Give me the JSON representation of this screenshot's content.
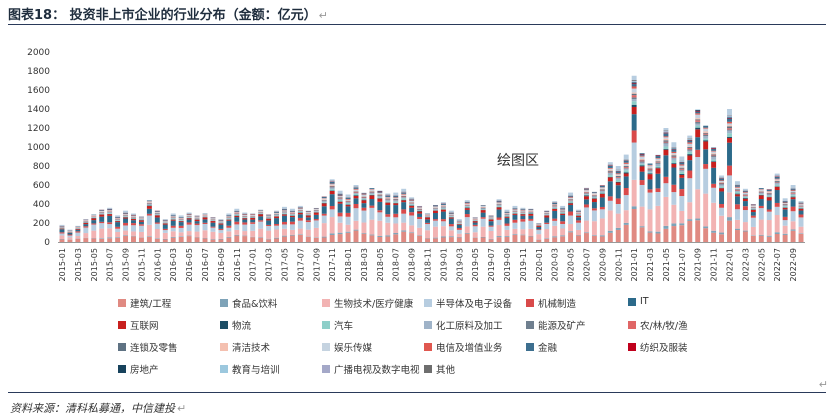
{
  "title": "图表18：  投资非上市企业的行业分布（金额：亿元）",
  "source": "资料来源：清科私募通，中信建投",
  "return_mark": "↵",
  "plot_area_label": "绘图区",
  "chart_data": {
    "type": "bar",
    "stacked": true,
    "title": "投资非上市企业的行业分布（金额：亿元）",
    "xlabel": "",
    "ylabel": "",
    "ylim": [
      0,
      2000
    ],
    "yticks": [
      0,
      200,
      400,
      600,
      800,
      1000,
      1200,
      1400,
      1600,
      1800,
      2000
    ],
    "grid": false,
    "legend_position": "bottom",
    "xtick_labels": [
      "2015-01",
      "2015-03",
      "2015-05",
      "2015-07",
      "2015-09",
      "2015-11",
      "2016-01",
      "2016-03",
      "2016-05",
      "2016-07",
      "2016-09",
      "2016-11",
      "2017-01",
      "2017-03",
      "2017-05",
      "2017-07",
      "2017-09",
      "2017-11",
      "2018-01",
      "2018-03",
      "2018-05",
      "2018-07",
      "2018-09",
      "2018-11",
      "2019-01",
      "2019-03",
      "2019-05",
      "2019-07",
      "2019-09",
      "2019-11",
      "2020-01",
      "2020-03",
      "2020-05",
      "2020-07",
      "2020-09",
      "2020-11",
      "2021-01",
      "2021-03",
      "2021-05",
      "2021-07",
      "2021-09",
      "2021-11",
      "2022-01",
      "2022-03",
      "2022-05",
      "2022-07",
      "2022-09"
    ],
    "categories": [
      "2015-01",
      "2015-02",
      "2015-03",
      "2015-04",
      "2015-05",
      "2015-06",
      "2015-07",
      "2015-08",
      "2015-09",
      "2015-10",
      "2015-11",
      "2015-12",
      "2016-01",
      "2016-02",
      "2016-03",
      "2016-04",
      "2016-05",
      "2016-06",
      "2016-07",
      "2016-08",
      "2016-09",
      "2016-10",
      "2016-11",
      "2016-12",
      "2017-01",
      "2017-02",
      "2017-03",
      "2017-04",
      "2017-05",
      "2017-06",
      "2017-07",
      "2017-08",
      "2017-09",
      "2017-10",
      "2017-11",
      "2017-12",
      "2018-01",
      "2018-02",
      "2018-03",
      "2018-04",
      "2018-05",
      "2018-06",
      "2018-07",
      "2018-08",
      "2018-09",
      "2018-10",
      "2018-11",
      "2018-12",
      "2019-01",
      "2019-02",
      "2019-03",
      "2019-04",
      "2019-05",
      "2019-06",
      "2019-07",
      "2019-08",
      "2019-09",
      "2019-10",
      "2019-11",
      "2019-12",
      "2020-01",
      "2020-02",
      "2020-03",
      "2020-04",
      "2020-05",
      "2020-06",
      "2020-07",
      "2020-08",
      "2020-09",
      "2020-10",
      "2020-11",
      "2020-12",
      "2021-01",
      "2021-02",
      "2021-03",
      "2021-04",
      "2021-05",
      "2021-06",
      "2021-07",
      "2021-08",
      "2021-09",
      "2021-10",
      "2021-11",
      "2021-12",
      "2022-01",
      "2022-02",
      "2022-03",
      "2022-04",
      "2022-05",
      "2022-06",
      "2022-07",
      "2022-08",
      "2022-09",
      "2022-10"
    ],
    "totals": [
      180,
      130,
      170,
      240,
      290,
      340,
      360,
      280,
      330,
      300,
      270,
      440,
      330,
      240,
      300,
      280,
      310,
      280,
      300,
      260,
      240,
      300,
      350,
      310,
      300,
      340,
      290,
      330,
      370,
      350,
      380,
      330,
      360,
      480,
      660,
      540,
      500,
      600,
      520,
      570,
      540,
      510,
      520,
      560,
      470,
      380,
      300,
      390,
      420,
      330,
      240,
      440,
      260,
      390,
      280,
      450,
      340,
      380,
      360,
      350,
      200,
      330,
      430,
      380,
      520,
      340,
      570,
      530,
      600,
      840,
      800,
      920,
      1750,
      940,
      830,
      920,
      1200,
      1050,
      900,
      1120,
      1400,
      1230,
      1000,
      700,
      1400,
      640,
      560,
      400,
      570,
      560,
      720,
      460,
      600,
      430
    ],
    "series": [
      {
        "name": "建筑/工程",
        "color": "#e08a82"
      },
      {
        "name": "食品&饮料",
        "color": "#7ea3b8"
      },
      {
        "name": "生物技术/医疗健康",
        "color": "#f2b3b3"
      },
      {
        "name": "半导体及电子设备",
        "color": "#b7cde0"
      },
      {
        "name": "机械制造",
        "color": "#d94a4a"
      },
      {
        "name": "IT",
        "color": "#2c6a8a"
      },
      {
        "name": "互联网",
        "color": "#c8201e"
      },
      {
        "name": "物流",
        "color": "#1d4e66"
      },
      {
        "name": "汽车",
        "color": "#8ecfc9"
      },
      {
        "name": "化工原料及加工",
        "color": "#9fb3c8"
      },
      {
        "name": "能源及矿产",
        "color": "#6f7f8f"
      },
      {
        "name": "农/林/牧/渔",
        "color": "#e06666"
      },
      {
        "name": "连锁及零售",
        "color": "#5f7283"
      },
      {
        "name": "清洁技术",
        "color": "#f4c0b0"
      },
      {
        "name": "娱乐传媒",
        "color": "#c5d3e0"
      },
      {
        "name": "电信及增值业务",
        "color": "#e0574f"
      },
      {
        "name": "金融",
        "color": "#3d6f8f"
      },
      {
        "name": "纺织及服装",
        "color": "#c0001c"
      },
      {
        "name": "房地产",
        "color": "#17425c"
      },
      {
        "name": "教育与培训",
        "color": "#9cc8de"
      },
      {
        "name": "广播电视及数字电视",
        "color": "#a4a8c8"
      },
      {
        "name": "其他",
        "color": "#6e6e6e"
      }
    ],
    "series_shares": [
      0.15,
      0.02,
      0.22,
      0.18,
      0.06,
      0.14,
      0.05,
      0.01,
      0.02,
      0.02,
      0.01,
      0.01,
      0.01,
      0.01,
      0.02,
      0.01,
      0.02,
      0.005,
      0.005,
      0.005,
      0.005,
      0.005
    ]
  }
}
